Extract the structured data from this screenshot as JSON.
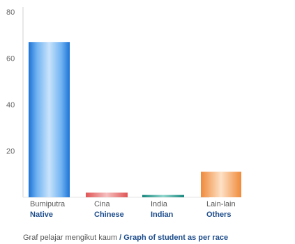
{
  "chart_data": {
    "type": "bar",
    "categories": [
      {
        "label_ms": "Bumiputra",
        "label_en": "Native"
      },
      {
        "label_ms": "Cina",
        "label_en": "Chinese"
      },
      {
        "label_ms": "India",
        "label_en": "Indian"
      },
      {
        "label_ms": "Lain-lain",
        "label_en": "Others"
      }
    ],
    "values": [
      67,
      2,
      1,
      11
    ],
    "colors": [
      "#3a8ee6",
      "#e57373",
      "#26a69a",
      "#f5a35c"
    ],
    "ylim": [
      0,
      80
    ],
    "yticks": [
      20,
      40,
      60,
      80
    ],
    "grid": false,
    "caption": {
      "ms": "Graf pelajar mengikut kaum",
      "separator": " / ",
      "en": "Graph of student as per race"
    }
  }
}
